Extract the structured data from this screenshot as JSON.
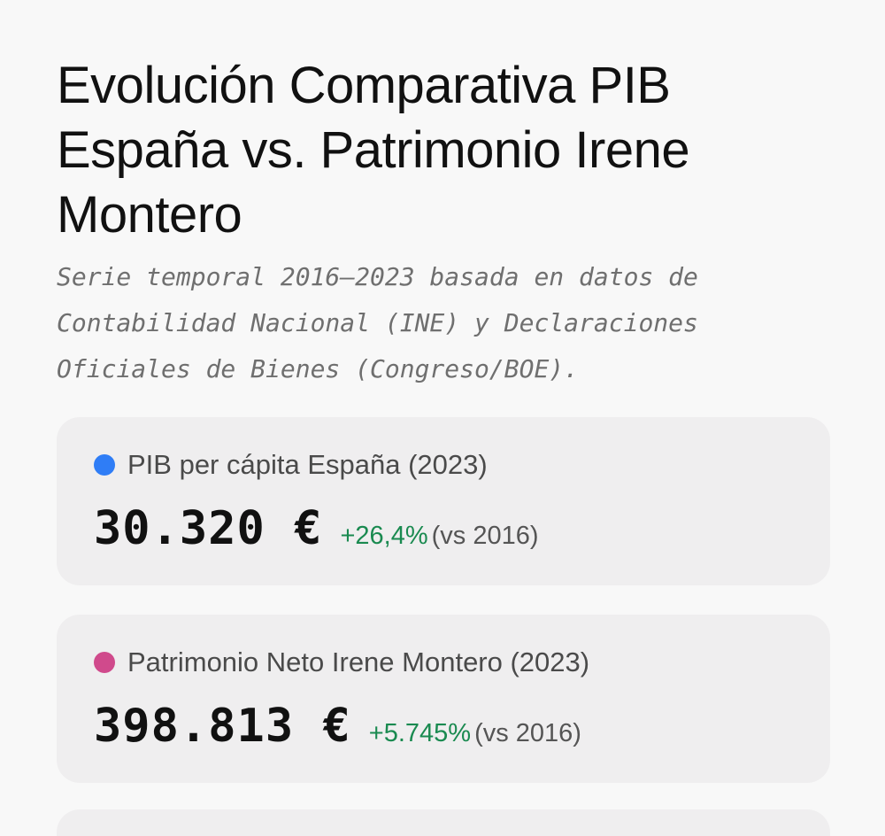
{
  "header": {
    "title": "Evolución Comparativa PIB España vs. Patrimonio Irene Montero",
    "subtitle": "Serie temporal 2016–2023 basada en datos de Contabilidad Nacional (INE) y Declaraciones Oficiales de Bienes (Congreso/BOE)."
  },
  "cards": [
    {
      "label": "PIB per cápita España (2023)",
      "value": "30.320 €",
      "change": "+26,4%",
      "reference": "(vs 2016)",
      "dot_color": "#2f7df6",
      "dot_icon": "blue-dot-icon"
    },
    {
      "label": "Patrimonio Neto Irene Montero (2023)",
      "value": "398.813 €",
      "change": "+5.745%",
      "reference": "(vs 2016)",
      "dot_color": "#d04a8c",
      "dot_icon": "pink-dot-icon"
    }
  ],
  "colors": {
    "positive_change": "#1a8a50",
    "background": "#f8f8f8",
    "card_background": "#efeeef"
  }
}
